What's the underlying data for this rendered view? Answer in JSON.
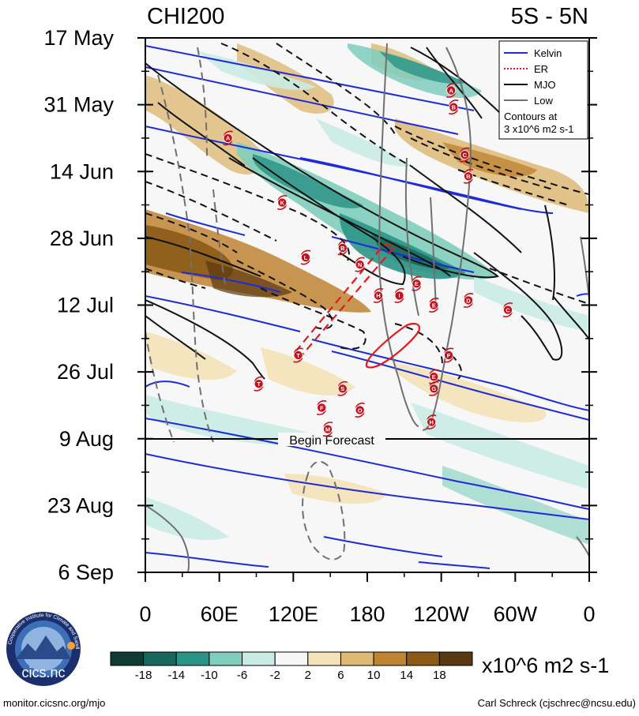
{
  "chart_data": {
    "type": "heatmap",
    "title": "CHI200",
    "latitude_band": "5S - 5N",
    "x_axis": {
      "tick_labels": [
        "0",
        "60E",
        "120E",
        "180",
        "120W",
        "60W",
        "0"
      ],
      "range_deg": [
        0,
        360
      ],
      "ticks_deg": [
        0,
        60,
        120,
        180,
        240,
        300,
        360
      ]
    },
    "y_axis": {
      "tick_labels": [
        "17 May",
        "31 May",
        "14 Jun",
        "28 Jun",
        "12 Jul",
        "26 Jul",
        "9 Aug",
        "23 Aug",
        "6 Sep"
      ],
      "range_days": [
        0,
        112
      ],
      "ticks_days": [
        0,
        14,
        28,
        42,
        56,
        70,
        84,
        98,
        112
      ]
    },
    "forecast": {
      "label": "Begin Forecast",
      "day": 84
    },
    "legend": {
      "position": "top-right",
      "entries": [
        {
          "label": "Kelvin",
          "color": "#1f2bd6",
          "style": "solid"
        },
        {
          "label": "ER",
          "color": "#e11b1b",
          "style": "dotted"
        },
        {
          "label": "MJO",
          "color": "#000000",
          "style": "solid"
        },
        {
          "label": "Low",
          "color": "#707070",
          "style": "solid"
        }
      ],
      "note_line1": "Contours at",
      "note_line2": "3 x10^6 m2 s-1"
    },
    "colorbar": {
      "unit_label": "x10^6 m2 s-1",
      "tick_labels": [
        "-18",
        "-14",
        "-10",
        "-6",
        "-2",
        "2",
        "6",
        "10",
        "14",
        "18"
      ],
      "colors": [
        "#0f3b33",
        "#17675c",
        "#2c9486",
        "#7fcdbd",
        "#c8ebe3",
        "#f7f7f7",
        "#f4e2b8",
        "#ddb974",
        "#bf8433",
        "#8c5a17",
        "#5a3810"
      ]
    },
    "cyclones": [
      {
        "label": "A",
        "lon": 67,
        "day": 21
      },
      {
        "label": "A",
        "lon": 248,
        "day": 11
      },
      {
        "label": "B",
        "lon": 250,
        "day": 14.5
      },
      {
        "label": "C",
        "lon": 259,
        "day": 24.5
      },
      {
        "label": "B",
        "lon": 262,
        "day": 29
      },
      {
        "label": "K",
        "lon": 111,
        "day": 34.5
      },
      {
        "label": "B",
        "lon": 160,
        "day": 44
      },
      {
        "label": "L",
        "lon": 130,
        "day": 46
      },
      {
        "label": "N",
        "lon": 174,
        "day": 47.5
      },
      {
        "label": "E",
        "lon": 220,
        "day": 51.5
      },
      {
        "label": "H",
        "lon": 189,
        "day": 54
      },
      {
        "label": "I",
        "lon": 206,
        "day": 54
      },
      {
        "label": "E",
        "lon": 234,
        "day": 56
      },
      {
        "label": "D",
        "lon": 262,
        "day": 55
      },
      {
        "label": "C",
        "lon": 294,
        "day": 57
      },
      {
        "label": "T",
        "lon": 124,
        "day": 66.5
      },
      {
        "label": "F",
        "lon": 246,
        "day": 66.5
      },
      {
        "label": "E",
        "lon": 234,
        "day": 71
      },
      {
        "label": "T",
        "lon": 92,
        "day": 72.5
      },
      {
        "label": "S",
        "lon": 160,
        "day": 73.5
      },
      {
        "label": "G",
        "lon": 234,
        "day": 73.5
      },
      {
        "label": "F",
        "lon": 143,
        "day": 77.5
      },
      {
        "label": "O",
        "lon": 174,
        "day": 78
      },
      {
        "label": "H",
        "lon": 232,
        "day": 80.5
      },
      {
        "label": "M",
        "lon": 148,
        "day": 82
      }
    ]
  },
  "branding": {
    "logo_text": "cics.nc",
    "logo_ring_text": "Cooperative Institute for Climate and Satellites",
    "url": "monitor.cicsnc.org/mjo",
    "credit": "Carl Schreck (cjschrec@ncsu.edu)"
  }
}
